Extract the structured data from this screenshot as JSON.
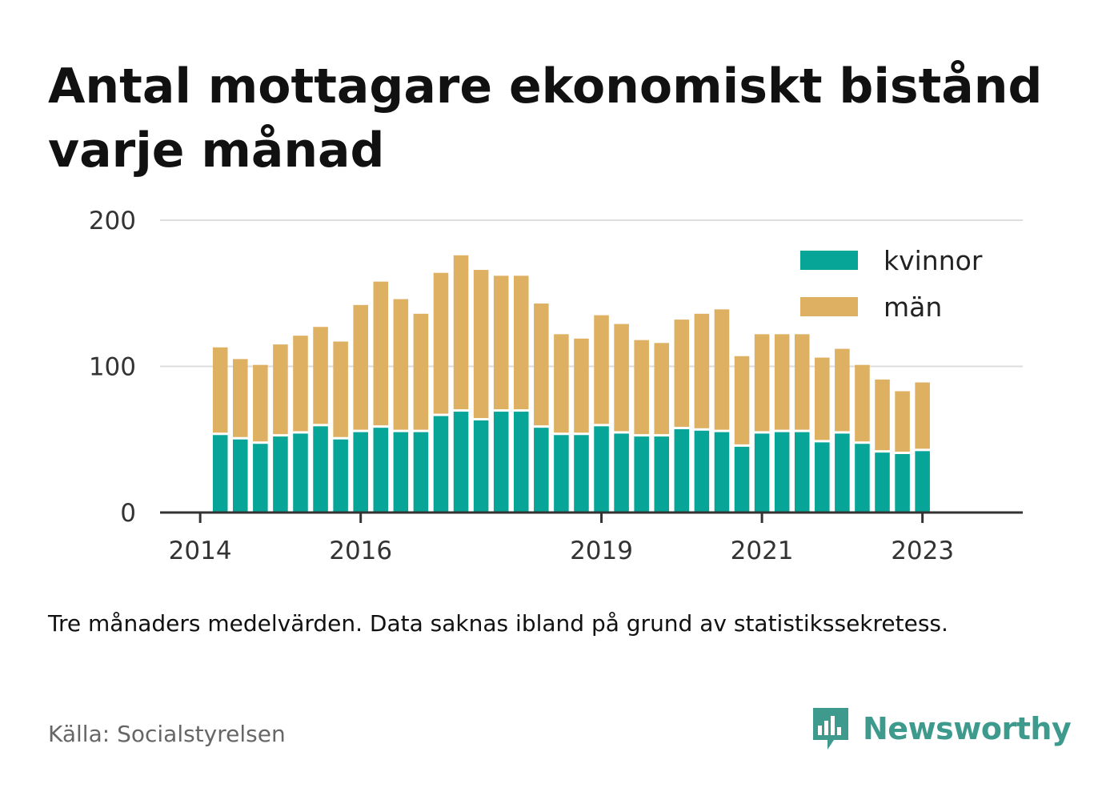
{
  "title": "Antal mottagare ekonomiskt bistånd varje månad",
  "note": "Tre månaders medelvärden. Data saknas ibland på grund av statistikssekretess.",
  "source": "Källa: Socialstyrelsen",
  "brand": {
    "name": "Newsworthy",
    "icon": "newsworthy-logo-icon",
    "color": "#3d9a8c"
  },
  "chart_data": {
    "type": "bar",
    "stacked": true,
    "title": "Antal mottagare ekonomiskt bistånd varje månad",
    "ylim": [
      0,
      200
    ],
    "yticks": [
      0,
      100,
      200
    ],
    "xticks": [
      {
        "label": "2014",
        "at": 2014.0
      },
      {
        "label": "2016",
        "at": 2016.0
      },
      {
        "label": "2019",
        "at": 2019.0
      },
      {
        "label": "2021",
        "at": 2021.0
      },
      {
        "label": "2023",
        "at": 2023.0
      }
    ],
    "xlim": [
      2013.5,
      2024.25
    ],
    "grid": true,
    "legend_position": "top-right",
    "x": [
      2014.25,
      2014.5,
      2014.75,
      2015.0,
      2015.25,
      2015.5,
      2015.75,
      2016.0,
      2016.25,
      2016.5,
      2016.75,
      2017.0,
      2017.25,
      2017.5,
      2017.75,
      2018.0,
      2018.25,
      2018.5,
      2018.75,
      2019.0,
      2019.25,
      2019.5,
      2019.75,
      2020.0,
      2020.25,
      2020.5,
      2020.75,
      2021.0,
      2021.25,
      2021.5,
      2021.75,
      2022.0,
      2022.25,
      2022.5,
      2022.75,
      2023.0
    ],
    "series": [
      {
        "name": "kvinnor",
        "color": "#07a597",
        "values": [
          53,
          50,
          47,
          52,
          54,
          59,
          50,
          55,
          58,
          55,
          55,
          66,
          69,
          63,
          69,
          69,
          58,
          53,
          53,
          59,
          54,
          52,
          52,
          57,
          56,
          55,
          45,
          54,
          55,
          55,
          48,
          54,
          47,
          41,
          40,
          42
        ]
      },
      {
        "name": "män",
        "color": "#deb062",
        "values": [
          60,
          55,
          54,
          63,
          67,
          68,
          67,
          87,
          100,
          91,
          81,
          98,
          107,
          103,
          93,
          93,
          85,
          69,
          66,
          76,
          75,
          66,
          64,
          75,
          80,
          84,
          62,
          68,
          67,
          67,
          58,
          58,
          54,
          50,
          43,
          47
        ]
      }
    ]
  }
}
